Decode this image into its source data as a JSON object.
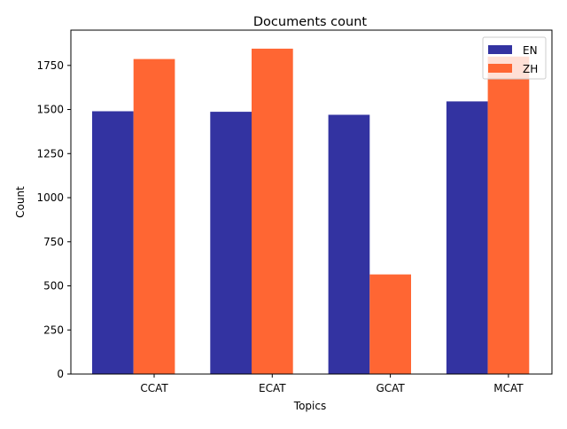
{
  "chart_data": {
    "type": "bar",
    "title": "Documents count",
    "xlabel": "Topics",
    "ylabel": "Count",
    "categories": [
      "CCAT",
      "ECAT",
      "GCAT",
      "MCAT"
    ],
    "series": [
      {
        "name": "EN",
        "color": "#3333a1",
        "values": [
          1490,
          1487,
          1470,
          1546
        ]
      },
      {
        "name": "ZH",
        "color": "#ff6633",
        "values": [
          1786,
          1845,
          565,
          1800
        ]
      }
    ],
    "ylim": [
      0,
      1950
    ],
    "yticks": [
      0,
      250,
      500,
      750,
      1000,
      1250,
      1500,
      1750
    ],
    "ytick_labels": [
      "0",
      "250",
      "500",
      "750",
      "1000",
      "1250",
      "1500",
      "1750"
    ],
    "grid": false,
    "legend": "top-right"
  }
}
